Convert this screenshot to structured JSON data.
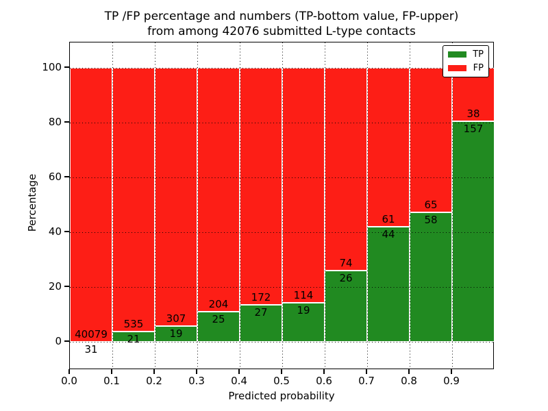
{
  "chart_data": {
    "type": "bar",
    "stacked": true,
    "normalized_to_percent": true,
    "title_line1": "TP /FP percentage and numbers (TP-bottom value, FP-upper)",
    "title_line2": "from among 42076 submitted L-type contacts",
    "total_contacts": 42076,
    "xlabel": "Predicted probability",
    "ylabel": "Percentage",
    "bin_starts": [
      0.0,
      0.1,
      0.2,
      0.3,
      0.4,
      0.5,
      0.6,
      0.7,
      0.8,
      0.9
    ],
    "bin_width": 0.1,
    "xtick_labels": [
      "0.0",
      "0.1",
      "0.2",
      "0.3",
      "0.4",
      "0.5",
      "0.6",
      "0.7",
      "0.8",
      "0.9"
    ],
    "ytick_values": [
      0,
      20,
      40,
      60,
      80,
      100
    ],
    "xlim": [
      0.0,
      1.0
    ],
    "ylim": [
      -10,
      109
    ],
    "grid": "dotted",
    "legend_position": "upper right",
    "bar_edge_color": "#ffffff",
    "series": [
      {
        "name": "TP",
        "color": "#218a21",
        "counts": [
          31,
          21,
          19,
          25,
          27,
          19,
          26,
          44,
          58,
          157
        ]
      },
      {
        "name": "FP",
        "color": "#fd1e16",
        "counts": [
          40079,
          535,
          307,
          204,
          172,
          114,
          74,
          61,
          65,
          38
        ]
      }
    ]
  }
}
